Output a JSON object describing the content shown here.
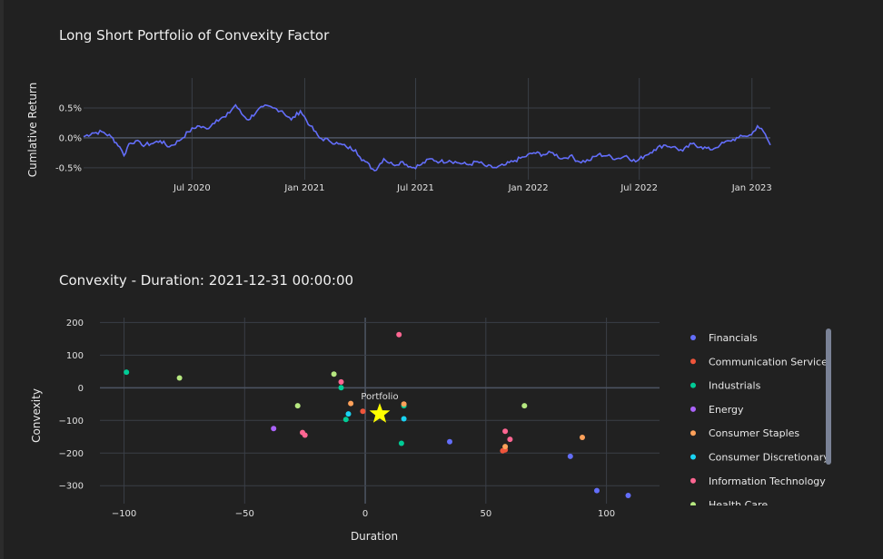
{
  "chart_data": [
    {
      "type": "line",
      "title": "Long Short Portfolio of Convexity Factor",
      "ylabel": "Cumlative Return",
      "xlabel": "",
      "x_range": [
        "2020-01-06",
        "2023-01-31"
      ],
      "ylim": [
        -0.7,
        1.0
      ],
      "x_ticks": [
        {
          "date": "2020-07-01",
          "label": "Jul 2020"
        },
        {
          "date": "2021-01-01",
          "label": "Jan 2021"
        },
        {
          "date": "2021-07-01",
          "label": "Jul 2021"
        },
        {
          "date": "2022-01-01",
          "label": "Jan 2022"
        },
        {
          "date": "2022-07-01",
          "label": "Jul 2022"
        },
        {
          "date": "2023-01-01",
          "label": "Jan 2023"
        }
      ],
      "y_ticks": [
        {
          "value": 0.5,
          "label": "0.5%"
        },
        {
          "value": 0.0,
          "label": "0.0%"
        },
        {
          "value": -0.5,
          "label": "-0.5%"
        }
      ],
      "grid": true,
      "color": "#636efa",
      "series": [
        {
          "x": [
            "2020-01-06",
            "2020-01-20",
            "2020-02-05",
            "2020-02-20",
            "2020-03-05",
            "2020-03-12",
            "2020-03-20",
            "2020-03-31",
            "2020-04-10",
            "2020-04-25",
            "2020-05-10",
            "2020-05-25",
            "2020-06-10",
            "2020-06-25",
            "2020-07-10",
            "2020-07-25",
            "2020-08-10",
            "2020-08-25",
            "2020-09-10",
            "2020-09-20",
            "2020-10-01",
            "2020-10-15",
            "2020-10-25",
            "2020-11-10",
            "2020-11-25",
            "2020-12-10",
            "2020-12-25",
            "2021-01-10",
            "2021-01-25",
            "2021-02-10",
            "2021-02-25",
            "2021-03-10",
            "2021-03-25",
            "2021-04-01",
            "2021-04-10",
            "2021-04-25",
            "2021-05-10",
            "2021-05-25",
            "2021-06-10",
            "2021-06-25",
            "2021-07-10",
            "2021-07-25",
            "2021-08-10",
            "2021-08-25",
            "2021-09-10",
            "2021-09-25",
            "2021-10-10",
            "2021-10-25",
            "2021-11-10",
            "2021-11-25",
            "2021-12-10",
            "2021-12-25",
            "2022-01-10",
            "2022-01-25",
            "2022-02-10",
            "2022-02-25",
            "2022-03-10",
            "2022-03-25",
            "2022-04-10",
            "2022-04-25",
            "2022-05-10",
            "2022-05-25",
            "2022-06-10",
            "2022-06-25",
            "2022-07-10",
            "2022-07-25",
            "2022-08-10",
            "2022-08-25",
            "2022-09-10",
            "2022-09-25",
            "2022-10-10",
            "2022-10-25",
            "2022-11-10",
            "2022-11-25",
            "2022-12-10",
            "2022-12-20",
            "2022-12-31",
            "2023-01-10",
            "2023-01-20",
            "2023-01-31"
          ],
          "y": [
            0.02,
            0.08,
            0.1,
            0.02,
            -0.15,
            -0.3,
            -0.1,
            -0.05,
            -0.12,
            -0.1,
            -0.05,
            -0.15,
            -0.05,
            0.1,
            0.2,
            0.15,
            0.3,
            0.35,
            0.55,
            0.4,
            0.3,
            0.45,
            0.52,
            0.5,
            0.45,
            0.3,
            0.45,
            0.2,
            0.0,
            -0.05,
            -0.1,
            -0.15,
            -0.2,
            -0.32,
            -0.4,
            -0.55,
            -0.35,
            -0.45,
            -0.4,
            -0.5,
            -0.45,
            -0.35,
            -0.4,
            -0.38,
            -0.42,
            -0.45,
            -0.4,
            -0.48,
            -0.5,
            -0.45,
            -0.38,
            -0.32,
            -0.25,
            -0.28,
            -0.25,
            -0.35,
            -0.3,
            -0.4,
            -0.38,
            -0.28,
            -0.3,
            -0.35,
            -0.3,
            -0.4,
            -0.3,
            -0.2,
            -0.12,
            -0.15,
            -0.22,
            -0.1,
            -0.15,
            -0.2,
            -0.12,
            -0.05,
            0.0,
            0.03,
            0.05,
            0.2,
            0.1,
            -0.12
          ]
        }
      ]
    },
    {
      "type": "scatter",
      "title": "Convexity - Duration: 2021-12-31 00:00:00",
      "xlabel": "Duration",
      "ylabel": "Convexity",
      "xlim": [
        -110,
        122
      ],
      "ylim": [
        -355,
        215
      ],
      "x_ticks": [
        -100,
        -50,
        0,
        50,
        100
      ],
      "y_ticks": [
        200,
        100,
        0,
        -100,
        -200,
        -300
      ],
      "x_tick_labels": [
        "−100",
        "−50",
        "0",
        "50",
        "100"
      ],
      "y_tick_labels": [
        "200",
        "100",
        "0",
        "−100",
        "−200",
        "−300"
      ],
      "grid": true,
      "legend_position": "right",
      "series": [
        {
          "name": "Financials",
          "color": "#636efa",
          "points": [
            [
              35,
              -165
            ],
            [
              85,
              -210
            ],
            [
              96,
              -315
            ],
            [
              109,
              -330
            ]
          ]
        },
        {
          "name": "Communication Services",
          "color": "#ef553b",
          "points": [
            [
              -1,
              -72
            ],
            [
              57,
              -193
            ],
            [
              58,
              -190
            ]
          ]
        },
        {
          "name": "Industrials",
          "color": "#00cc96",
          "points": [
            [
              -99,
              48
            ],
            [
              -10,
              0
            ],
            [
              -8,
              -97
            ],
            [
              15,
              -170
            ],
            [
              16,
              -55
            ]
          ]
        },
        {
          "name": "Energy",
          "color": "#ab63fa",
          "points": [
            [
              -38,
              -125
            ]
          ]
        },
        {
          "name": "Consumer Staples",
          "color": "#ffa15a",
          "points": [
            [
              -6,
              -48
            ],
            [
              16,
              -50
            ],
            [
              58,
              -180
            ],
            [
              90,
              -152
            ]
          ]
        },
        {
          "name": "Consumer Discretionary",
          "color": "#19d3f3",
          "points": [
            [
              -7,
              -80
            ],
            [
              16,
              -95
            ]
          ]
        },
        {
          "name": "Information Technology",
          "color": "#ff6692",
          "points": [
            [
              -10,
              18
            ],
            [
              14,
              163
            ],
            [
              -26,
              -137
            ],
            [
              -25,
              -145
            ],
            [
              58,
              -133
            ],
            [
              60,
              -158
            ]
          ]
        },
        {
          "name": "Health Care",
          "color": "#b6e880",
          "points": [
            [
              -77,
              30
            ],
            [
              -13,
              42
            ],
            [
              -28,
              -55
            ],
            [
              66,
              -55
            ]
          ]
        }
      ],
      "portfolio": {
        "label": "Portfolio",
        "x": 6,
        "y": -80,
        "color": "#ffff00",
        "marker": "star"
      }
    }
  ]
}
